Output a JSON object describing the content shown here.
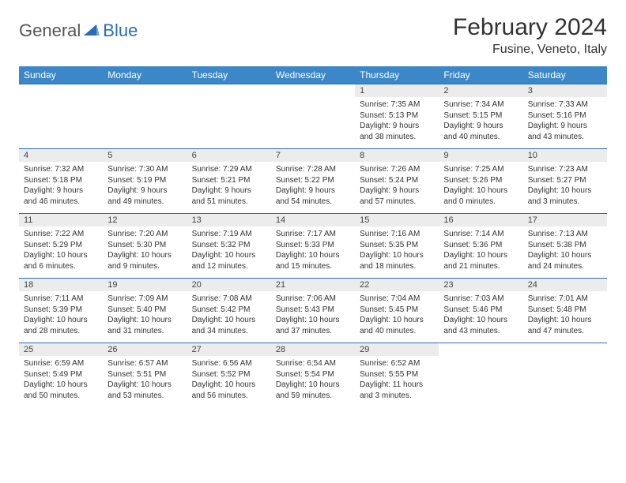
{
  "brand": {
    "part1": "General",
    "part2": "Blue"
  },
  "title": "February 2024",
  "location": "Fusine, Veneto, Italy",
  "colors": {
    "header_bg": "#3b87c8",
    "border": "#2a6db5",
    "daynum_bg": "#ececec",
    "brand_blue": "#2a6db5",
    "text": "#333333"
  },
  "dayHeaders": [
    "Sunday",
    "Monday",
    "Tuesday",
    "Wednesday",
    "Thursday",
    "Friday",
    "Saturday"
  ],
  "weeks": [
    [
      {
        "n": "",
        "sr": "",
        "ss": "",
        "dl": ""
      },
      {
        "n": "",
        "sr": "",
        "ss": "",
        "dl": ""
      },
      {
        "n": "",
        "sr": "",
        "ss": "",
        "dl": ""
      },
      {
        "n": "",
        "sr": "",
        "ss": "",
        "dl": ""
      },
      {
        "n": "1",
        "sr": "Sunrise: 7:35 AM",
        "ss": "Sunset: 5:13 PM",
        "dl": "Daylight: 9 hours and 38 minutes."
      },
      {
        "n": "2",
        "sr": "Sunrise: 7:34 AM",
        "ss": "Sunset: 5:15 PM",
        "dl": "Daylight: 9 hours and 40 minutes."
      },
      {
        "n": "3",
        "sr": "Sunrise: 7:33 AM",
        "ss": "Sunset: 5:16 PM",
        "dl": "Daylight: 9 hours and 43 minutes."
      }
    ],
    [
      {
        "n": "4",
        "sr": "Sunrise: 7:32 AM",
        "ss": "Sunset: 5:18 PM",
        "dl": "Daylight: 9 hours and 46 minutes."
      },
      {
        "n": "5",
        "sr": "Sunrise: 7:30 AM",
        "ss": "Sunset: 5:19 PM",
        "dl": "Daylight: 9 hours and 49 minutes."
      },
      {
        "n": "6",
        "sr": "Sunrise: 7:29 AM",
        "ss": "Sunset: 5:21 PM",
        "dl": "Daylight: 9 hours and 51 minutes."
      },
      {
        "n": "7",
        "sr": "Sunrise: 7:28 AM",
        "ss": "Sunset: 5:22 PM",
        "dl": "Daylight: 9 hours and 54 minutes."
      },
      {
        "n": "8",
        "sr": "Sunrise: 7:26 AM",
        "ss": "Sunset: 5:24 PM",
        "dl": "Daylight: 9 hours and 57 minutes."
      },
      {
        "n": "9",
        "sr": "Sunrise: 7:25 AM",
        "ss": "Sunset: 5:26 PM",
        "dl": "Daylight: 10 hours and 0 minutes."
      },
      {
        "n": "10",
        "sr": "Sunrise: 7:23 AM",
        "ss": "Sunset: 5:27 PM",
        "dl": "Daylight: 10 hours and 3 minutes."
      }
    ],
    [
      {
        "n": "11",
        "sr": "Sunrise: 7:22 AM",
        "ss": "Sunset: 5:29 PM",
        "dl": "Daylight: 10 hours and 6 minutes."
      },
      {
        "n": "12",
        "sr": "Sunrise: 7:20 AM",
        "ss": "Sunset: 5:30 PM",
        "dl": "Daylight: 10 hours and 9 minutes."
      },
      {
        "n": "13",
        "sr": "Sunrise: 7:19 AM",
        "ss": "Sunset: 5:32 PM",
        "dl": "Daylight: 10 hours and 12 minutes."
      },
      {
        "n": "14",
        "sr": "Sunrise: 7:17 AM",
        "ss": "Sunset: 5:33 PM",
        "dl": "Daylight: 10 hours and 15 minutes."
      },
      {
        "n": "15",
        "sr": "Sunrise: 7:16 AM",
        "ss": "Sunset: 5:35 PM",
        "dl": "Daylight: 10 hours and 18 minutes."
      },
      {
        "n": "16",
        "sr": "Sunrise: 7:14 AM",
        "ss": "Sunset: 5:36 PM",
        "dl": "Daylight: 10 hours and 21 minutes."
      },
      {
        "n": "17",
        "sr": "Sunrise: 7:13 AM",
        "ss": "Sunset: 5:38 PM",
        "dl": "Daylight: 10 hours and 24 minutes."
      }
    ],
    [
      {
        "n": "18",
        "sr": "Sunrise: 7:11 AM",
        "ss": "Sunset: 5:39 PM",
        "dl": "Daylight: 10 hours and 28 minutes."
      },
      {
        "n": "19",
        "sr": "Sunrise: 7:09 AM",
        "ss": "Sunset: 5:40 PM",
        "dl": "Daylight: 10 hours and 31 minutes."
      },
      {
        "n": "20",
        "sr": "Sunrise: 7:08 AM",
        "ss": "Sunset: 5:42 PM",
        "dl": "Daylight: 10 hours and 34 minutes."
      },
      {
        "n": "21",
        "sr": "Sunrise: 7:06 AM",
        "ss": "Sunset: 5:43 PM",
        "dl": "Daylight: 10 hours and 37 minutes."
      },
      {
        "n": "22",
        "sr": "Sunrise: 7:04 AM",
        "ss": "Sunset: 5:45 PM",
        "dl": "Daylight: 10 hours and 40 minutes."
      },
      {
        "n": "23",
        "sr": "Sunrise: 7:03 AM",
        "ss": "Sunset: 5:46 PM",
        "dl": "Daylight: 10 hours and 43 minutes."
      },
      {
        "n": "24",
        "sr": "Sunrise: 7:01 AM",
        "ss": "Sunset: 5:48 PM",
        "dl": "Daylight: 10 hours and 47 minutes."
      }
    ],
    [
      {
        "n": "25",
        "sr": "Sunrise: 6:59 AM",
        "ss": "Sunset: 5:49 PM",
        "dl": "Daylight: 10 hours and 50 minutes."
      },
      {
        "n": "26",
        "sr": "Sunrise: 6:57 AM",
        "ss": "Sunset: 5:51 PM",
        "dl": "Daylight: 10 hours and 53 minutes."
      },
      {
        "n": "27",
        "sr": "Sunrise: 6:56 AM",
        "ss": "Sunset: 5:52 PM",
        "dl": "Daylight: 10 hours and 56 minutes."
      },
      {
        "n": "28",
        "sr": "Sunrise: 6:54 AM",
        "ss": "Sunset: 5:54 PM",
        "dl": "Daylight: 10 hours and 59 minutes."
      },
      {
        "n": "29",
        "sr": "Sunrise: 6:52 AM",
        "ss": "Sunset: 5:55 PM",
        "dl": "Daylight: 11 hours and 3 minutes."
      },
      {
        "n": "",
        "sr": "",
        "ss": "",
        "dl": ""
      },
      {
        "n": "",
        "sr": "",
        "ss": "",
        "dl": ""
      }
    ]
  ]
}
